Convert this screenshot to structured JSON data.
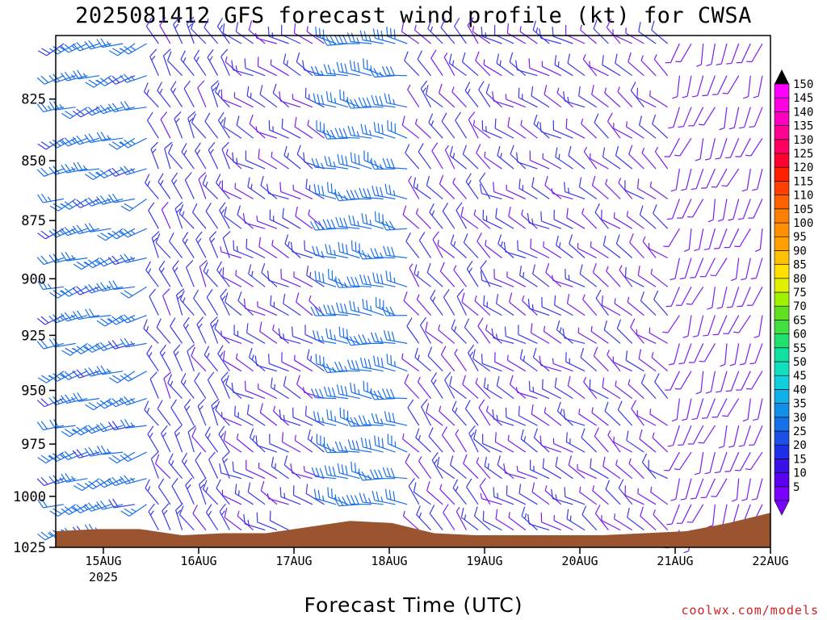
{
  "title": "2025081412 GFS forecast wind profile (kt) for CWSA",
  "credit": "coolwx.com/models",
  "chart_data": {
    "type": "wind-barb-profile",
    "title": "2025081412 GFS forecast wind profile (kt) for CWSA",
    "xlabel": "Forecast Time (UTC)",
    "ylabel": "",
    "x_tick_labels": [
      "15AUG",
      "16AUG",
      "17AUG",
      "18AUG",
      "19AUG",
      "20AUG",
      "21AUG",
      "22AUG"
    ],
    "x_year_label": "2025",
    "x_range": [
      "2025-08-14T12",
      "2025-08-22T00"
    ],
    "y_ticks": [
      825,
      850,
      875,
      900,
      925,
      950,
      975,
      1000,
      1025
    ],
    "y_range": [
      800,
      1025
    ],
    "y_scale": "log-pressure (inverted)",
    "legend_placement": "right",
    "colorbar": {
      "units": "kt",
      "labels": [
        5,
        10,
        15,
        20,
        25,
        30,
        35,
        40,
        45,
        50,
        55,
        60,
        65,
        70,
        75,
        80,
        85,
        90,
        95,
        100,
        105,
        110,
        115,
        120,
        125,
        130,
        135,
        140,
        145,
        150
      ],
      "colors": [
        "#7a00ff",
        "#5a00f0",
        "#3a10e8",
        "#2030e8",
        "#1a50e8",
        "#1670e8",
        "#1290e8",
        "#10b0e8",
        "#10d0e0",
        "#10e0c0",
        "#10e0a0",
        "#20e070",
        "#40e040",
        "#60e020",
        "#a0f000",
        "#e0f000",
        "#ffe000",
        "#ffc000",
        "#ffa000",
        "#ff9000",
        "#ff8000",
        "#ff6000",
        "#ff4000",
        "#ff2000",
        "#ff0030",
        "#ff0060",
        "#ff0090",
        "#ff00c0",
        "#ff00e0",
        "#ff00ff"
      ]
    },
    "terrain_color": "#9a5530",
    "barb_color_low": "#7a1ff0",
    "barb_color_mid": "#3a3ae8",
    "barb_color_high": "#1a70e8",
    "pressure_levels": [
      800,
      812.5,
      825,
      837.5,
      850,
      862.5,
      875,
      887.5,
      900,
      912.5,
      925,
      937.5,
      950,
      962.5,
      975,
      987.5,
      1000,
      1012.5
    ],
    "series": [
      {
        "time": "2025-08-14T12",
        "speed_kt": 25,
        "direction_deg": 250
      },
      {
        "time": "2025-08-15T12",
        "speed_kt": 15,
        "direction_deg": 330
      },
      {
        "time": "2025-08-16T12",
        "speed_kt": 12,
        "direction_deg": 300
      },
      {
        "time": "2025-08-17T12",
        "speed_kt": 30,
        "direction_deg": 280
      },
      {
        "time": "2025-08-18T12",
        "speed_kt": 12,
        "direction_deg": 320
      },
      {
        "time": "2025-08-19T12",
        "speed_kt": 12,
        "direction_deg": 300
      },
      {
        "time": "2025-08-20T12",
        "speed_kt": 10,
        "direction_deg": 310
      },
      {
        "time": "2025-08-21T12",
        "speed_kt": 5,
        "direction_deg": 200
      }
    ],
    "surface_pressure": [
      1017,
      1016,
      1016,
      1019,
      1018,
      1018,
      1015,
      1012,
      1013,
      1018,
      1019,
      1019,
      1019,
      1019,
      1018,
      1017,
      1013,
      1008
    ]
  }
}
